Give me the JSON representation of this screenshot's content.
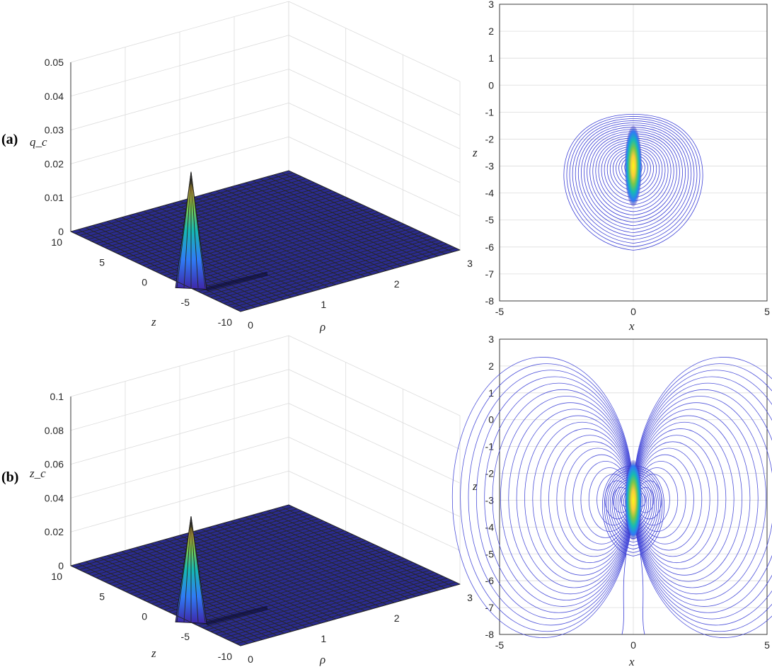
{
  "chart_data": [
    {
      "panel": "(a)",
      "type": "surface",
      "zlabel": "q_c",
      "xlabel": "ρ",
      "ylabel": "z",
      "zticks": [
        "0",
        "0.01",
        "0.02",
        "0.03",
        "0.04",
        "0.05"
      ],
      "zlim": [
        0,
        0.05
      ],
      "rho_ticks": [
        "0",
        "1",
        "2",
        "3"
      ],
      "z_ticks": [
        "10",
        "5",
        "0",
        "-5",
        "-10"
      ],
      "rho_range": [
        0,
        3
      ],
      "z_range": [
        -10,
        10
      ],
      "peak": {
        "rho": 0,
        "z": -3,
        "value": 0.033
      },
      "colormap": [
        "#3e26a8",
        "#2f7bf6",
        "#16b9b4",
        "#79c74b",
        "#f9cc3a",
        "#f9fb15"
      ]
    },
    {
      "panel": "(a)",
      "type": "contour",
      "xlabel": "x",
      "ylabel": "z",
      "xticks": [
        "-5",
        "0",
        "5"
      ],
      "yticks": [
        "3",
        "2",
        "1",
        "0",
        "-1",
        "-2",
        "-3",
        "-4",
        "-5",
        "-6",
        "-7",
        "-8"
      ],
      "xlim": [
        -5,
        5
      ],
      "ylim": [
        -8,
        3
      ],
      "center": {
        "x": 0,
        "z": -3
      },
      "grid": true
    },
    {
      "panel": "(b)",
      "type": "surface",
      "zlabel": "z_c",
      "xlabel": "ρ",
      "ylabel": "z",
      "zticks": [
        "0",
        "0.02",
        "0.04",
        "0.06",
        "0.08",
        "0.1"
      ],
      "zlim": [
        0,
        0.1
      ],
      "rho_ticks": [
        "0",
        "1",
        "2",
        "3"
      ],
      "z_ticks": [
        "10",
        "5",
        "0",
        "-5",
        "-10"
      ],
      "rho_range": [
        0,
        3
      ],
      "z_range": [
        -10,
        10
      ],
      "peak": {
        "rho": 0,
        "z": -3,
        "value": 0.06
      },
      "colormap": [
        "#3e26a8",
        "#2f7bf6",
        "#16b9b4",
        "#79c74b",
        "#f9cc3a",
        "#f9fb15"
      ]
    },
    {
      "panel": "(b)",
      "type": "contour",
      "xlabel": "x",
      "ylabel": "z",
      "xticks": [
        "-5",
        "0",
        "5"
      ],
      "yticks": [
        "3",
        "2",
        "1",
        "0",
        "-1",
        "-2",
        "-3",
        "-4",
        "-5",
        "-6",
        "-7",
        "-8"
      ],
      "xlim": [
        -5,
        5
      ],
      "ylim": [
        -8,
        3
      ],
      "center": {
        "x": 0,
        "z": -3
      },
      "grid": true
    }
  ]
}
